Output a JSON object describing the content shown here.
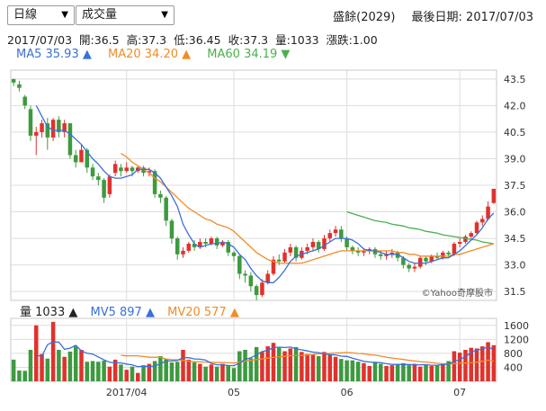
{
  "controls": {
    "period_select": "日線",
    "indicator_select": "成交量"
  },
  "header": {
    "stock": "盛餘(2029)",
    "last_date": "最後日期: 2017/07/03"
  },
  "quote": {
    "date": "2017/07/03",
    "open": "開:36.5",
    "high": "高:37.3",
    "low": "低:36.45",
    "close": "收:37.3",
    "volume": "量:1033",
    "change": "漲跌:1.00"
  },
  "ma_legend": {
    "ma5": "MA5 35.93 ▲",
    "ma20": "MA20 34.20 ▲",
    "ma60": "MA60 34.19 ▼"
  },
  "vol_legend": {
    "vol": "量 1033 ▲",
    "mv5": "MV5 897 ▲",
    "mv20": "MV20 577 ▲"
  },
  "watermark": "©Yahoo奇摩股市",
  "colors": {
    "up": "#e0322c",
    "down": "#3d9a3f",
    "flat": "#555555",
    "ma5": "#3a6fd8",
    "ma20": "#f08c28",
    "ma60": "#4caf50",
    "grid": "#dddddd"
  },
  "chart_data": {
    "type": "candlestick",
    "price_axis": {
      "ticks": [
        "31.5",
        "33.0",
        "34.5",
        "36.0",
        "37.5",
        "39.0",
        "40.5",
        "42.0",
        "43.5"
      ],
      "ylim": [
        31.0,
        44.0
      ]
    },
    "volume_axis": {
      "ticks": [
        "400",
        "800",
        "1200",
        "1600"
      ],
      "ylim": [
        0,
        1800
      ]
    },
    "x_ticks": [
      {
        "label": "2017/04",
        "index": 20
      },
      {
        "label": "05",
        "index": 39
      },
      {
        "label": "06",
        "index": 59
      },
      {
        "label": "07",
        "index": 79
      }
    ],
    "candles": [
      [
        43.5,
        43.3,
        43.1,
        43.5
      ],
      [
        43.2,
        43.0,
        42.8,
        43.4
      ],
      [
        42.5,
        42.0,
        41.8,
        42.6
      ],
      [
        41.8,
        40.3,
        40.0,
        42.0
      ],
      [
        40.3,
        40.5,
        39.2,
        40.8
      ],
      [
        40.5,
        41.0,
        40.2,
        41.2
      ],
      [
        41.0,
        40.2,
        39.5,
        41.3
      ],
      [
        40.2,
        41.2,
        40.0,
        41.3
      ],
      [
        41.2,
        40.5,
        40.2,
        41.4
      ],
      [
        40.5,
        41.0,
        40.2,
        41.2
      ],
      [
        41.0,
        39.2,
        39.0,
        41.0
      ],
      [
        39.2,
        38.8,
        38.5,
        39.5
      ],
      [
        38.8,
        39.5,
        38.8,
        39.8
      ],
      [
        39.5,
        38.5,
        38.2,
        39.6
      ],
      [
        38.5,
        38.0,
        37.8,
        38.7
      ],
      [
        38.0,
        37.8,
        37.5,
        38.2
      ],
      [
        37.8,
        36.8,
        36.5,
        37.9
      ],
      [
        37.0,
        38.0,
        36.8,
        38.1
      ],
      [
        38.2,
        38.7,
        38.0,
        38.9
      ],
      [
        38.5,
        38.3,
        38.0,
        38.7
      ],
      [
        38.3,
        38.5,
        38.2,
        38.8
      ],
      [
        38.5,
        38.3,
        38.0,
        38.6
      ],
      [
        38.3,
        38.5,
        38.2,
        38.6
      ],
      [
        38.5,
        38.2,
        38.0,
        38.6
      ],
      [
        38.2,
        38.3,
        38.0,
        38.5
      ],
      [
        38.3,
        37.0,
        36.8,
        38.4
      ],
      [
        37.0,
        36.8,
        36.5,
        37.2
      ],
      [
        36.8,
        35.5,
        35.2,
        36.9
      ],
      [
        35.5,
        34.5,
        34.2,
        35.6
      ],
      [
        34.5,
        33.6,
        33.3,
        34.6
      ],
      [
        33.6,
        33.8,
        33.4,
        34.0
      ],
      [
        33.8,
        34.2,
        33.7,
        34.3
      ],
      [
        34.2,
        34.0,
        33.8,
        34.4
      ],
      [
        34.0,
        34.3,
        33.9,
        34.5
      ],
      [
        34.3,
        34.2,
        34.0,
        34.5
      ],
      [
        34.2,
        34.5,
        34.1,
        34.6
      ],
      [
        34.5,
        34.1,
        33.9,
        34.6
      ],
      [
        34.1,
        34.3,
        34.0,
        34.4
      ],
      [
        34.3,
        33.7,
        33.5,
        34.4
      ],
      [
        33.7,
        33.5,
        33.2,
        33.8
      ],
      [
        33.5,
        32.5,
        32.2,
        33.6
      ],
      [
        32.5,
        32.4,
        32.0,
        32.7
      ],
      [
        32.4,
        31.8,
        31.5,
        32.6
      ],
      [
        31.8,
        31.3,
        31.0,
        31.9
      ],
      [
        31.3,
        32.0,
        31.2,
        32.2
      ],
      [
        32.0,
        32.5,
        31.9,
        32.7
      ],
      [
        32.5,
        33.3,
        32.4,
        33.5
      ],
      [
        33.3,
        33.2,
        33.0,
        33.6
      ],
      [
        33.2,
        33.7,
        33.1,
        33.9
      ],
      [
        33.7,
        34.0,
        33.5,
        34.2
      ],
      [
        34.0,
        33.4,
        33.2,
        34.1
      ],
      [
        33.4,
        33.8,
        33.3,
        34.0
      ],
      [
        33.8,
        34.0,
        33.6,
        34.2
      ],
      [
        34.0,
        34.3,
        33.8,
        34.5
      ],
      [
        34.3,
        33.9,
        33.7,
        34.4
      ],
      [
        33.9,
        34.5,
        33.8,
        34.7
      ],
      [
        34.5,
        34.8,
        34.3,
        35.0
      ],
      [
        34.8,
        35.0,
        34.6,
        35.2
      ],
      [
        35.0,
        34.5,
        34.3,
        35.2
      ],
      [
        34.5,
        34.0,
        33.8,
        34.6
      ],
      [
        34.0,
        33.8,
        33.6,
        34.1
      ],
      [
        33.8,
        33.7,
        33.5,
        34.0
      ],
      [
        33.7,
        33.8,
        33.5,
        33.9
      ],
      [
        33.8,
        33.9,
        33.6,
        34.0
      ],
      [
        33.9,
        33.6,
        33.4,
        34.0
      ],
      [
        33.6,
        33.5,
        33.3,
        33.8
      ],
      [
        33.5,
        33.6,
        33.3,
        33.8
      ],
      [
        33.6,
        33.7,
        33.4,
        33.9
      ],
      [
        33.7,
        33.4,
        33.2,
        33.8
      ],
      [
        33.4,
        33.0,
        32.8,
        33.5
      ],
      [
        33.0,
        32.8,
        32.6,
        33.1
      ],
      [
        32.8,
        32.9,
        32.6,
        33.1
      ],
      [
        32.9,
        33.4,
        32.8,
        33.5
      ],
      [
        33.4,
        33.2,
        33.0,
        33.5
      ],
      [
        33.2,
        33.5,
        33.1,
        33.6
      ],
      [
        33.5,
        33.4,
        33.3,
        33.7
      ],
      [
        33.4,
        33.7,
        33.3,
        33.8
      ],
      [
        33.7,
        33.6,
        33.4,
        33.8
      ],
      [
        33.6,
        34.2,
        33.5,
        34.3
      ],
      [
        34.2,
        34.3,
        34.0,
        34.5
      ],
      [
        34.3,
        34.6,
        34.2,
        34.7
      ],
      [
        34.6,
        34.8,
        34.5,
        34.9
      ],
      [
        34.8,
        35.4,
        34.7,
        35.5
      ],
      [
        35.4,
        35.6,
        35.2,
        35.8
      ],
      [
        35.6,
        36.3,
        35.5,
        36.6
      ],
      [
        36.5,
        37.3,
        36.45,
        37.3
      ]
    ],
    "volumes": [
      620,
      310,
      300,
      900,
      1600,
      780,
      650,
      1700,
      900,
      700,
      850,
      1000,
      900,
      560,
      580,
      560,
      590,
      420,
      620,
      480,
      330,
      420,
      240,
      460,
      500,
      580,
      720,
      640,
      540,
      560,
      900,
      620,
      540,
      500,
      420,
      480,
      420,
      500,
      460,
      380,
      860,
      900,
      660,
      980,
      840,
      1000,
      1100,
      960,
      860,
      940,
      980,
      840,
      780,
      760,
      720,
      840,
      760,
      700,
      640,
      600,
      600,
      560,
      520,
      440,
      560,
      500,
      440,
      460,
      480,
      520,
      460,
      500,
      420,
      480,
      440,
      460,
      500,
      580,
      860,
      820,
      900,
      960,
      940,
      1000,
      1120,
      1033
    ],
    "ma5": [
      null,
      null,
      null,
      null,
      42.0,
      41.4,
      40.8,
      40.6,
      40.6,
      40.6,
      40.4,
      40.1,
      39.8,
      39.4,
      39.0,
      38.7,
      38.3,
      38.0,
      37.9,
      37.9,
      38.0,
      38.1,
      38.4,
      38.4,
      38.4,
      38.2,
      37.9,
      37.4,
      36.9,
      36.3,
      35.3,
      34.7,
      34.2,
      34.0,
      34.1,
      34.2,
      34.2,
      34.3,
      34.2,
      34.0,
      33.6,
      33.3,
      32.8,
      32.4,
      32.1,
      32.0,
      32.0,
      32.3,
      32.7,
      33.2,
      33.5,
      33.6,
      33.7,
      33.8,
      33.9,
      34.1,
      34.3,
      34.5,
      34.5,
      34.5,
      34.4,
      34.2,
      33.9,
      33.8,
      33.8,
      33.7,
      33.6,
      33.6,
      33.6,
      33.4,
      33.2,
      33.1,
      33.1,
      33.1,
      33.2,
      33.3,
      33.4,
      33.4,
      33.6,
      33.8,
      34.1,
      34.4,
      34.7,
      35.1,
      35.6,
      35.93
    ],
    "ma20": [
      null,
      null,
      null,
      null,
      null,
      null,
      null,
      null,
      null,
      null,
      null,
      null,
      null,
      null,
      null,
      null,
      null,
      null,
      null,
      39.3,
      39.1,
      38.8,
      38.6,
      38.4,
      38.2,
      37.9,
      37.7,
      37.4,
      37.1,
      36.8,
      36.5,
      36.2,
      36.0,
      35.8,
      35.6,
      35.5,
      35.3,
      35.2,
      35.1,
      34.9,
      34.6,
      34.3,
      34.0,
      33.7,
      33.5,
      33.3,
      33.2,
      33.1,
      33.1,
      33.1,
      33.1,
      33.1,
      33.2,
      33.3,
      33.4,
      33.5,
      33.6,
      33.7,
      33.8,
      33.8,
      33.8,
      33.8,
      33.8,
      33.8,
      33.8,
      33.8,
      33.8,
      33.8,
      33.7,
      33.7,
      33.6,
      33.6,
      33.5,
      33.5,
      33.5,
      33.5,
      33.5,
      33.5,
      33.6,
      33.6,
      33.7,
      33.8,
      33.9,
      34.0,
      34.1,
      34.2
    ],
    "ma60": [
      null,
      null,
      null,
      null,
      null,
      null,
      null,
      null,
      null,
      null,
      null,
      null,
      null,
      null,
      null,
      null,
      null,
      null,
      null,
      null,
      null,
      null,
      null,
      null,
      null,
      null,
      null,
      null,
      null,
      null,
      null,
      null,
      null,
      null,
      null,
      null,
      null,
      null,
      null,
      null,
      null,
      null,
      null,
      null,
      null,
      null,
      null,
      null,
      null,
      null,
      null,
      null,
      null,
      null,
      null,
      null,
      null,
      null,
      null,
      36.0,
      35.9,
      35.8,
      35.7,
      35.6,
      35.5,
      35.45,
      35.4,
      35.3,
      35.25,
      35.2,
      35.1,
      35.05,
      35.0,
      34.9,
      34.85,
      34.8,
      34.7,
      34.65,
      34.6,
      34.55,
      34.5,
      34.45,
      34.4,
      34.3,
      34.25,
      34.19
    ],
    "mv5": [
      null,
      null,
      null,
      null,
      746,
      718,
      1046,
      1126,
      1120,
      916,
      950,
      1030,
      870,
      802,
      778,
      698,
      614,
      546,
      526,
      526,
      494,
      470,
      418,
      432,
      424,
      436,
      504,
      580,
      580,
      600,
      680,
      676,
      640,
      632,
      608,
      508,
      472,
      468,
      452,
      448,
      524,
      628,
      676,
      756,
      852,
      884,
      966,
      976,
      968,
      980,
      928,
      900,
      868,
      836,
      820,
      788,
      764,
      756,
      720,
      712,
      660,
      616,
      572,
      552,
      540,
      532,
      504,
      484,
      484,
      480,
      480,
      468,
      472,
      476,
      460,
      460,
      480,
      492,
      568,
      628,
      700,
      834,
      896,
      924,
      986,
      897
    ],
    "mv20": [
      null,
      null,
      null,
      null,
      null,
      null,
      null,
      null,
      null,
      null,
      null,
      null,
      null,
      null,
      null,
      null,
      null,
      null,
      null,
      743,
      728,
      734,
      731,
      709,
      689,
      688,
      691,
      638,
      620,
      613,
      598,
      578,
      560,
      557,
      549,
      544,
      536,
      540,
      530,
      525,
      552,
      576,
      597,
      623,
      640,
      664,
      683,
      699,
      715,
      734,
      735,
      741,
      753,
      766,
      784,
      797,
      799,
      809,
      815,
      826,
      813,
      796,
      789,
      762,
      748,
      723,
      690,
      665,
      646,
      625,
      599,
      582,
      564,
      550,
      535,
      516,
      503,
      497,
      507,
      518,
      521,
      530,
      545,
      573,
      606,
      577
    ]
  }
}
